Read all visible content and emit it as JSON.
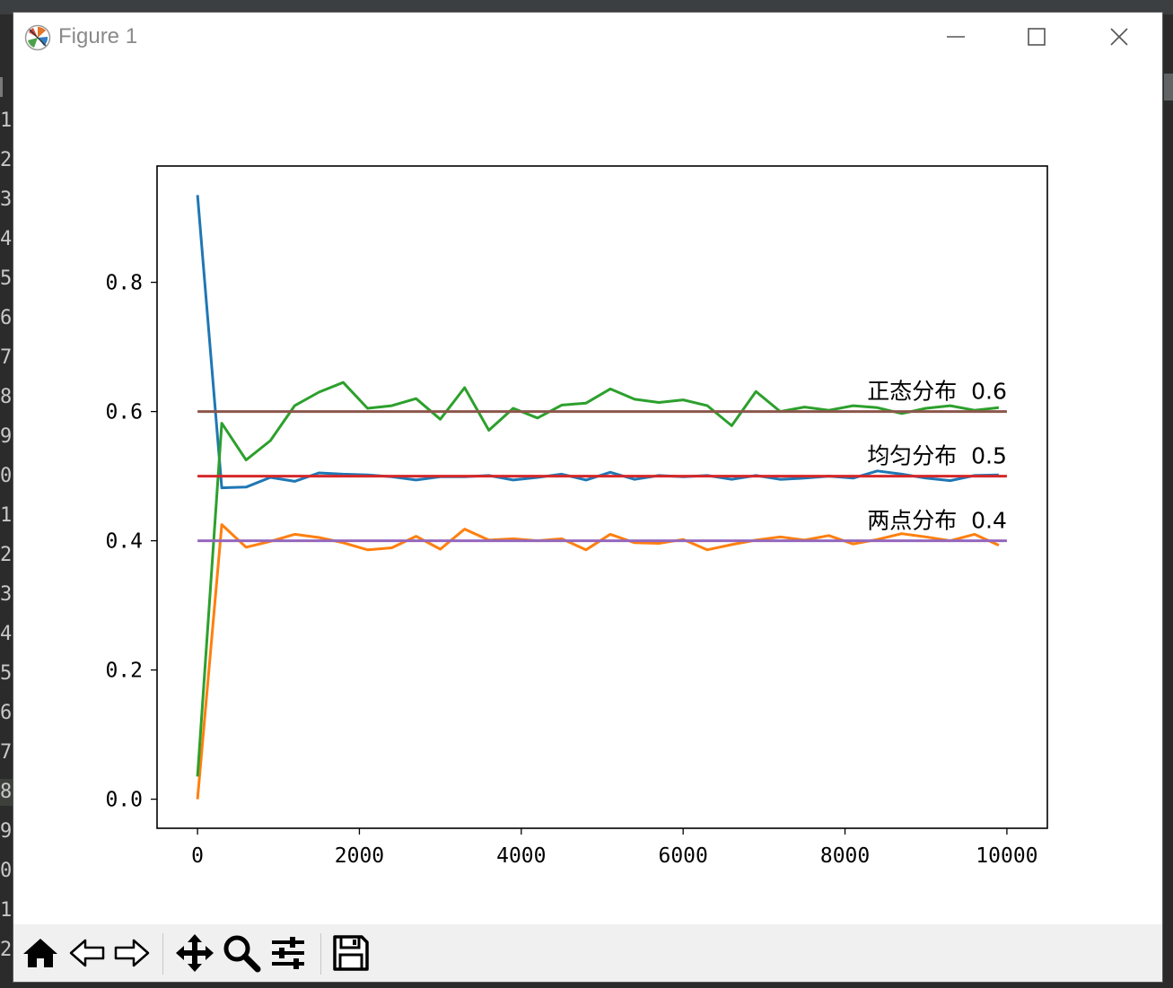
{
  "window": {
    "title": "Figure 1"
  },
  "ide": {
    "gutter": [
      "1",
      "2",
      "3",
      "4",
      "5",
      "6",
      "7",
      "8",
      "9",
      "0",
      "1",
      "2",
      "3",
      "4",
      "5",
      "6",
      "7",
      "8",
      "9",
      "0",
      "1",
      "2"
    ]
  },
  "toolbar": {
    "icons": [
      "home-icon",
      "back-arrow-icon",
      "forward-arrow-icon",
      "pan-icon",
      "zoom-icon",
      "configure-subplots-icon",
      "save-icon"
    ]
  },
  "colors": {
    "blue": "#1f77b4",
    "orange": "#ff7f0e",
    "green": "#2ca02c",
    "red": "#d62728",
    "purple": "#9467bd",
    "brown": "#8c564b"
  },
  "chart_data": {
    "type": "line",
    "title": "",
    "xlabel": "",
    "ylabel": "",
    "xlim": [
      -500,
      10500
    ],
    "ylim": [
      -0.045,
      0.98
    ],
    "xticks": [
      0,
      2000,
      4000,
      6000,
      8000,
      10000
    ],
    "xtick_labels": [
      "0",
      "2000",
      "4000",
      "6000",
      "8000",
      "10000"
    ],
    "yticks": [
      0.0,
      0.2,
      0.4,
      0.6,
      0.8
    ],
    "ytick_labels": [
      "0.0",
      "0.2",
      "0.4",
      "0.6",
      "0.8"
    ],
    "x": [
      0,
      300,
      600,
      900,
      1200,
      1500,
      1800,
      2100,
      2400,
      2700,
      3000,
      3300,
      3600,
      3900,
      4200,
      4500,
      4800,
      5100,
      5400,
      5700,
      6000,
      6300,
      6600,
      6900,
      7200,
      7500,
      7800,
      8100,
      8400,
      8700,
      9000,
      9300,
      9600,
      9900
    ],
    "series": [
      {
        "name": "均匀分布",
        "color": "#1f77b4",
        "values": [
          0.935,
          0.482,
          0.483,
          0.498,
          0.492,
          0.505,
          0.503,
          0.502,
          0.499,
          0.494,
          0.499,
          0.499,
          0.501,
          0.494,
          0.498,
          0.503,
          0.494,
          0.506,
          0.495,
          0.501,
          0.499,
          0.501,
          0.495,
          0.501,
          0.495,
          0.497,
          0.5,
          0.497,
          0.508,
          0.503,
          0.497,
          0.493,
          0.501,
          0.502
        ]
      },
      {
        "name": "两点分布",
        "color": "#ff7f0e",
        "values": [
          0.0,
          0.425,
          0.39,
          0.399,
          0.41,
          0.405,
          0.397,
          0.386,
          0.389,
          0.407,
          0.387,
          0.418,
          0.401,
          0.403,
          0.4,
          0.403,
          0.386,
          0.41,
          0.397,
          0.396,
          0.402,
          0.386,
          0.394,
          0.401,
          0.406,
          0.401,
          0.408,
          0.395,
          0.402,
          0.411,
          0.406,
          0.4,
          0.41,
          0.393
        ]
      },
      {
        "name": "正态分布",
        "color": "#2ca02c",
        "values": [
          0.035,
          0.582,
          0.525,
          0.555,
          0.609,
          0.63,
          0.645,
          0.605,
          0.609,
          0.62,
          0.588,
          0.637,
          0.571,
          0.605,
          0.59,
          0.61,
          0.613,
          0.635,
          0.619,
          0.614,
          0.618,
          0.609,
          0.578,
          0.631,
          0.6,
          0.607,
          0.602,
          0.609,
          0.606,
          0.597,
          0.605,
          0.609,
          0.602,
          0.606
        ]
      }
    ],
    "hlines": [
      {
        "y": 0.6,
        "color": "#8c564b",
        "x_range": [
          0,
          10000
        ]
      },
      {
        "y": 0.5,
        "color": "#d62728",
        "x_range": [
          0,
          10000
        ]
      },
      {
        "y": 0.4,
        "color": "#9467bd",
        "x_range": [
          0,
          10000
        ]
      }
    ],
    "annotations": [
      {
        "text": "正态分布  0.6",
        "x": 10000,
        "y": 0.6
      },
      {
        "text": "均匀分布  0.5",
        "x": 10000,
        "y": 0.5
      },
      {
        "text": "两点分布  0.4",
        "x": 10000,
        "y": 0.4
      }
    ],
    "grid": false,
    "legend": "none"
  }
}
